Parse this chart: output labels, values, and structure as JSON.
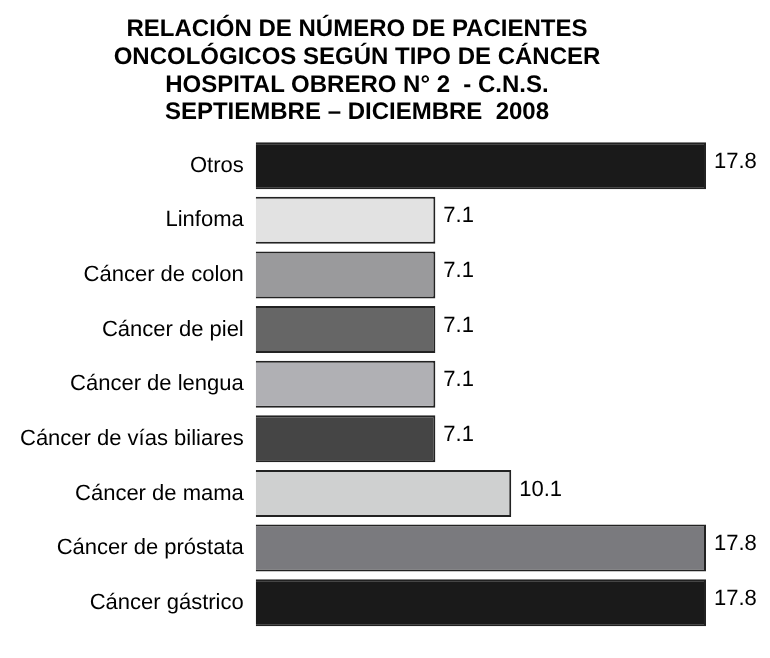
{
  "chart_data": {
    "type": "bar",
    "orientation": "horizontal",
    "title": "RELACIÓN DE NÚMERO DE PACIENTES\nONCOLÓGICOS SEGÚN TIPO DE CÁNCER\nHOSPITAL OBRERO N° 2  - C.N.S.\nSEPTIEMBRE – DICIEMBRE  2008",
    "categories": [
      "Otros",
      "Linfoma",
      "Cáncer de colon",
      "Cáncer de piel",
      "Cáncer de lengua",
      "Cáncer de vías biliares",
      "Cáncer de mama",
      "Cáncer de próstata",
      "Cáncer gástrico"
    ],
    "values": [
      17.8,
      7.1,
      7.1,
      7.1,
      7.1,
      7.1,
      10.1,
      17.8,
      17.8
    ],
    "colors": [
      "#1a1a1a",
      "#e2e2e2",
      "#9a9a9c",
      "#666666",
      "#b0b0b4",
      "#454545",
      "#cfd0d0",
      "#7a7a7e",
      "#1a1a1a"
    ],
    "data_labels": true,
    "legend": false
  }
}
